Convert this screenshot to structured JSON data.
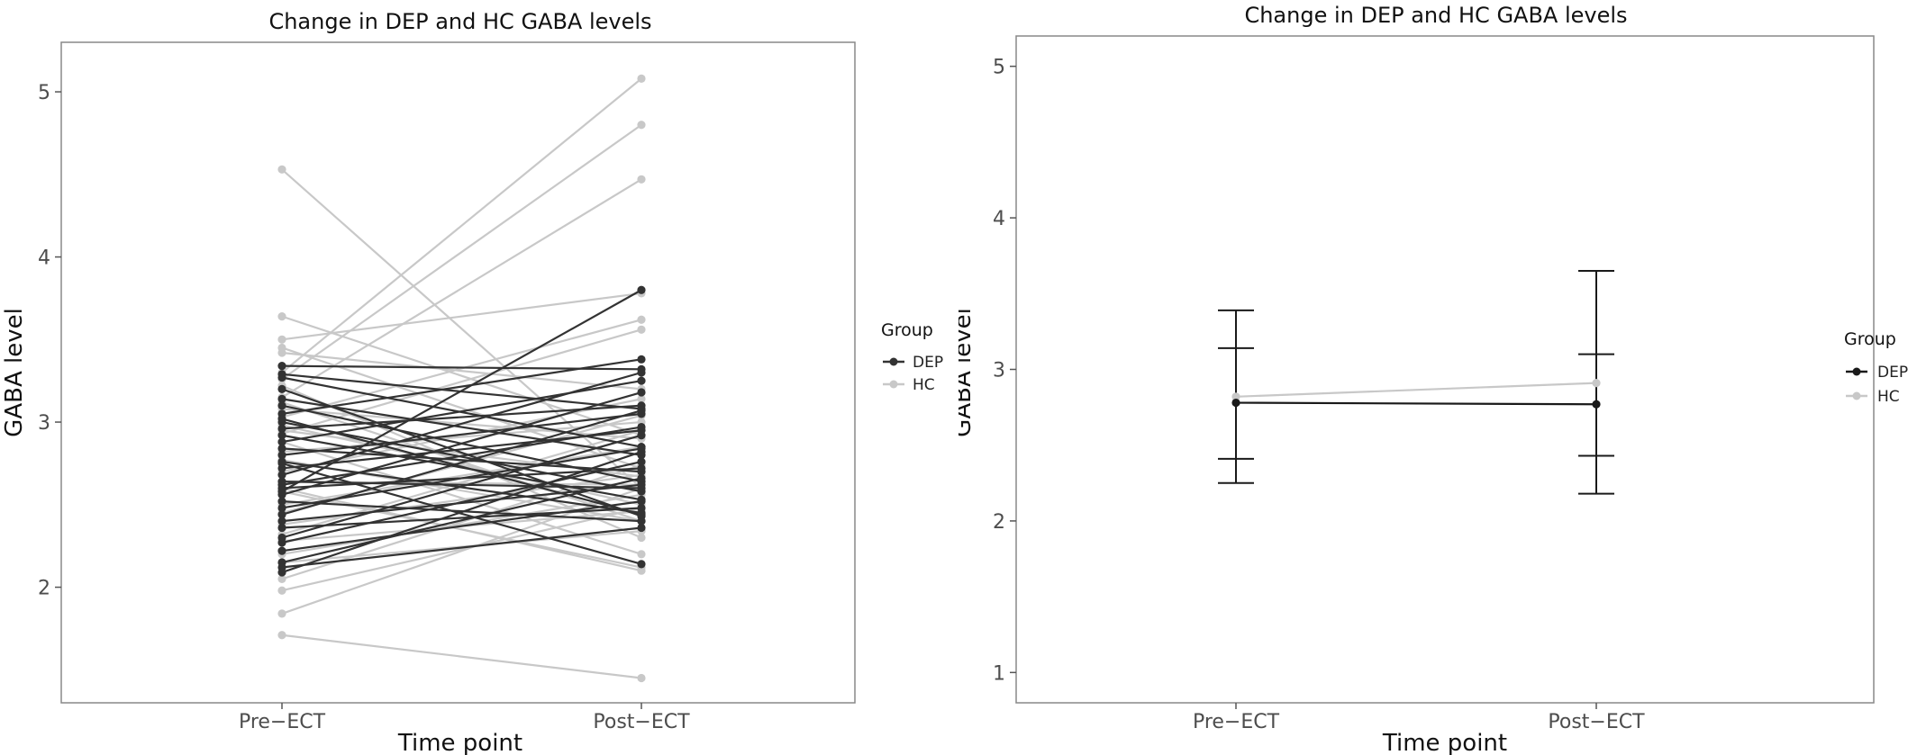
{
  "chart_data": [
    {
      "type": "line",
      "title": "Change in DEP and HC GABA levels",
      "xlabel": "Time point",
      "ylabel": "GABA level",
      "categories": [
        "Pre−ECT",
        "Post−ECT"
      ],
      "ylim": [
        1.3,
        5.3
      ],
      "yticks": [
        2,
        3,
        4,
        5
      ],
      "grid": false,
      "legend": {
        "title": "Group",
        "position": "right",
        "entries": [
          "DEP",
          "HC"
        ]
      },
      "colors": {
        "DEP": "#333333",
        "HC": "#c8c8c8"
      },
      "series": [
        {
          "name": "DEP",
          "color": "#333333",
          "pairs": [
            [
              3.34,
              3.32
            ],
            [
              3.29,
              3.08
            ],
            [
              3.27,
              2.85
            ],
            [
              3.2,
              2.43
            ],
            [
              3.14,
              2.8
            ],
            [
              3.1,
              2.64
            ],
            [
              3.05,
              3.38
            ],
            [
              3.0,
              2.58
            ],
            [
              2.96,
              3.1
            ],
            [
              2.92,
              2.53
            ],
            [
              2.88,
              3.25
            ],
            [
              2.84,
              2.7
            ],
            [
              2.8,
              3.05
            ],
            [
              2.76,
              2.45
            ],
            [
              2.72,
              2.95
            ],
            [
              2.68,
              3.3
            ],
            [
              2.64,
              2.6
            ],
            [
              2.6,
              2.72
            ],
            [
              2.56,
              3.18
            ],
            [
              2.52,
              2.4
            ],
            [
              2.48,
              2.84
            ],
            [
              2.44,
              3.07
            ],
            [
              2.4,
              2.62
            ],
            [
              2.36,
              2.48
            ],
            [
              2.3,
              2.92
            ],
            [
              2.27,
              2.76
            ],
            [
              2.22,
              2.52
            ],
            [
              2.15,
              2.66
            ],
            [
              2.12,
              2.36
            ],
            [
              2.09,
              2.82
            ],
            [
              2.58,
              3.8
            ],
            [
              2.75,
              2.14
            ],
            [
              3.02,
              2.44
            ],
            [
              2.62,
              2.97
            ]
          ]
        },
        {
          "name": "HC",
          "color": "#c8c8c8",
          "pairs": [
            [
              4.53,
              2.6
            ],
            [
              3.64,
              2.92
            ],
            [
              3.5,
              3.78
            ],
            [
              3.45,
              2.72
            ],
            [
              3.42,
              3.2
            ],
            [
              3.3,
              5.08
            ],
            [
              3.26,
              4.8
            ],
            [
              3.22,
              2.3
            ],
            [
              3.15,
              4.47
            ],
            [
              3.08,
              2.9
            ],
            [
              3.03,
              3.62
            ],
            [
              2.98,
              2.5
            ],
            [
              2.93,
              3.56
            ],
            [
              2.88,
              2.2
            ],
            [
              2.82,
              3.0
            ],
            [
              2.77,
              2.4
            ],
            [
              2.7,
              3.14
            ],
            [
              2.64,
              2.62
            ],
            [
              2.58,
              2.12
            ],
            [
              2.5,
              2.85
            ],
            [
              2.45,
              3.04
            ],
            [
              2.38,
              2.68
            ],
            [
              2.32,
              2.95
            ],
            [
              2.28,
              2.46
            ],
            [
              2.2,
              2.56
            ],
            [
              2.15,
              2.34
            ],
            [
              2.05,
              2.74
            ],
            [
              1.98,
              2.48
            ],
            [
              1.84,
              2.6
            ],
            [
              1.71,
              1.45
            ],
            [
              2.6,
              2.1
            ],
            [
              3.12,
              2.4
            ],
            [
              2.95,
              2.67
            ]
          ]
        }
      ]
    },
    {
      "type": "line",
      "title": "Change in DEP and HC GABA levels",
      "xlabel": "Time point",
      "ylabel": "GABA level",
      "categories": [
        "Pre−ECT",
        "Post−ECT"
      ],
      "ylim": [
        0.8,
        5.2
      ],
      "yticks": [
        1,
        2,
        3,
        4,
        5
      ],
      "grid": false,
      "legend": {
        "title": "Group",
        "position": "right",
        "entries": [
          "DEP",
          "HC"
        ]
      },
      "colors": {
        "DEP": "#1a1a1a",
        "HC": "#c8c8c8"
      },
      "series": [
        {
          "name": "DEP",
          "color": "#1a1a1a",
          "values": [
            2.78,
            2.77
          ],
          "error_low": [
            2.41,
            2.43
          ],
          "error_high": [
            3.14,
            3.1
          ]
        },
        {
          "name": "HC",
          "color": "#c8c8c8",
          "values": [
            2.82,
            2.91
          ],
          "error_low": [
            2.25,
            2.18
          ],
          "error_high": [
            3.39,
            3.65
          ]
        }
      ]
    }
  ]
}
